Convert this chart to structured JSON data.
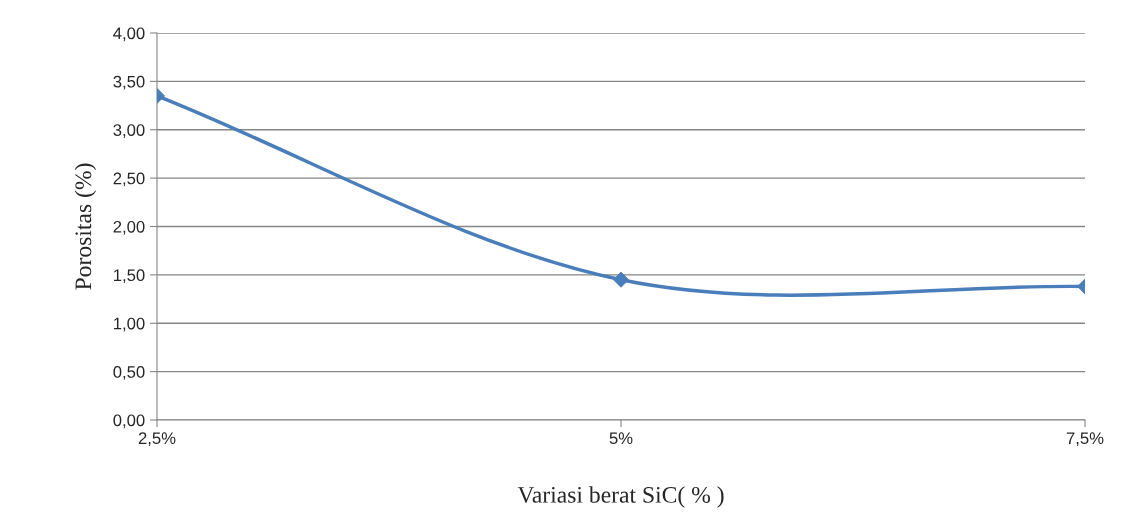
{
  "chart_data": {
    "type": "line",
    "xlabel": "Variasi berat SiC( % )",
    "ylabel": "Porositas (%)",
    "categories": [
      "2,5%",
      "5%",
      "7,5%"
    ],
    "series": [
      {
        "color": "#4a7ebb",
        "values": [
          3.35,
          1.45,
          1.38
        ]
      }
    ],
    "ylim": [
      0,
      4
    ],
    "yticks": [
      {
        "value": 0,
        "label": "0,00"
      },
      {
        "value": 0.5,
        "label": "0,50"
      },
      {
        "value": 1,
        "label": "1,00"
      },
      {
        "value": 1.5,
        "label": "1,50"
      },
      {
        "value": 2,
        "label": "2,00"
      },
      {
        "value": 2.5,
        "label": "2,50"
      },
      {
        "value": 3,
        "label": "3,00"
      },
      {
        "value": 3.5,
        "label": "3,50"
      },
      {
        "value": 4,
        "label": "4,00"
      }
    ],
    "grid": "y",
    "marker": "diamond",
    "line_style": "solid",
    "legend": false
  }
}
